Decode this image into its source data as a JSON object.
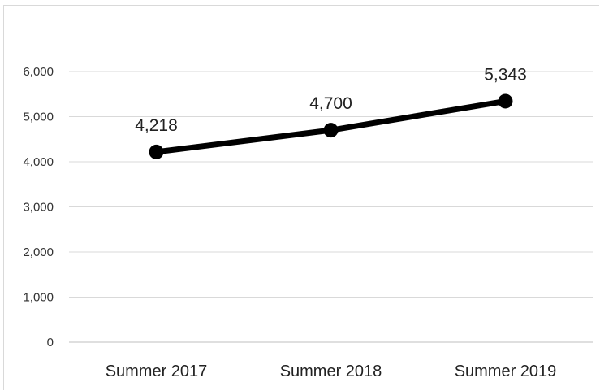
{
  "chart_data": {
    "type": "line",
    "categories": [
      "Summer 2017",
      "Summer 2018",
      "Summer 2019"
    ],
    "series": [
      {
        "values": [
          4218,
          4700,
          5343
        ]
      }
    ],
    "data_labels": [
      "4,218",
      "4,700",
      "5,343"
    ],
    "y_ticks": [
      "0",
      "1,000",
      "2,000",
      "3,000",
      "4,000",
      "5,000",
      "6,000"
    ],
    "y_tick_values": [
      0,
      1000,
      2000,
      3000,
      4000,
      5000,
      6000
    ],
    "ylim": [
      0,
      6000
    ],
    "grid": true,
    "legend": "none",
    "colors": {
      "line": "#000000",
      "grid": "#d9d9d9",
      "axis": "#bfbfbf"
    }
  }
}
